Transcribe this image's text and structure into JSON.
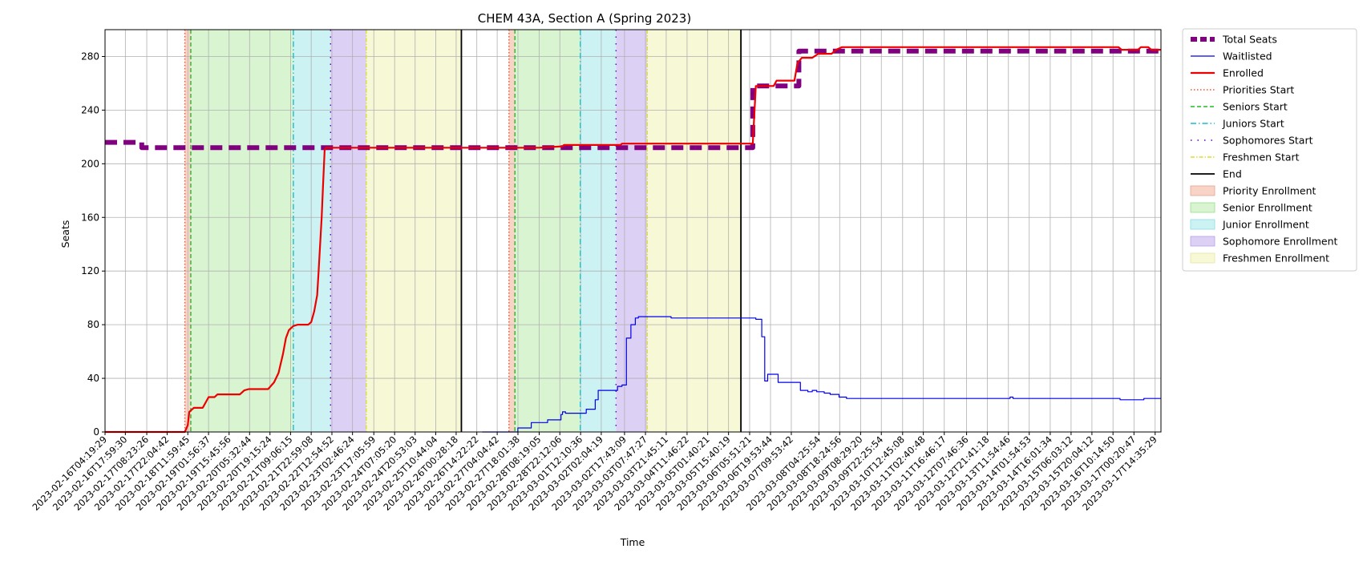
{
  "chart_data": {
    "type": "line",
    "title": "CHEM 43A, Section A (Spring 2023)",
    "xlabel": "Time",
    "ylabel": "Seats",
    "ylim": [
      0,
      300
    ],
    "yticks": [
      0,
      40,
      80,
      120,
      160,
      200,
      240,
      280
    ],
    "xlim": [
      "2023-02-16T04:19:29",
      "2023-03-17T18:30:00"
    ],
    "grid": true,
    "legend_position": "outside-right",
    "xtick_labels": [
      "2023-02-16T04:19:29",
      "2023-02-16T17:59:30",
      "2023-02-17T08:23:26",
      "2023-02-17T22:04:42",
      "2023-02-18T11:59:45",
      "2023-02-19T01:56:37",
      "2023-02-19T15:45:56",
      "2023-02-20T05:32:44",
      "2023-02-20T19:15:24",
      "2023-02-21T09:06:15",
      "2023-02-21T22:59:08",
      "2023-02-22T12:54:52",
      "2023-02-23T02:46:24",
      "2023-02-23T17:05:59",
      "2023-02-24T07:05:20",
      "2023-02-24T20:53:03",
      "2023-02-25T10:44:04",
      "2023-02-26T00:28:18",
      "2023-02-26T14:22:22",
      "2023-02-27T04:04:42",
      "2023-02-27T18:01:38",
      "2023-02-28T08:19:05",
      "2023-02-28T22:12:06",
      "2023-03-01T12:10:36",
      "2023-03-02T02:04:19",
      "2023-03-02T17:43:09",
      "2023-03-03T07:47:27",
      "2023-03-03T21:45:11",
      "2023-03-04T11:46:22",
      "2023-03-05T01:40:21",
      "2023-03-05T15:40:19",
      "2023-03-06T05:51:21",
      "2023-03-06T19:53:44",
      "2023-03-07T09:53:42",
      "2023-03-08T04:25:54",
      "2023-03-08T18:24:56",
      "2023-03-09T08:29:20",
      "2023-03-09T22:25:54",
      "2023-03-10T12:45:08",
      "2023-03-11T02:40:48",
      "2023-03-11T16:46:17",
      "2023-03-12T07:46:36",
      "2023-03-12T21:41:18",
      "2023-03-13T11:54:46",
      "2023-03-14T01:54:53",
      "2023-03-14T16:01:34",
      "2023-03-15T06:03:12",
      "2023-03-15T20:04:12",
      "2023-03-16T10:14:50",
      "2023-03-17T00:20:47",
      "2023-03-17T14:35:29"
    ],
    "markers": [
      {
        "name": "Priorities Start",
        "x": [
          "2023-02-18T10:00:00",
          "2023-02-27T12:00:00"
        ],
        "color": "#ff4c2b",
        "dash": "1.5,2.5"
      },
      {
        "name": "Seniors Start",
        "x": [
          "2023-02-18T14:00:00",
          "2023-02-27T16:00:00"
        ],
        "color": "#22bb22",
        "dash": "5,3"
      },
      {
        "name": "Juniors Start",
        "x": [
          "2023-02-21T11:00:00",
          "2023-03-01T12:00:00"
        ],
        "color": "#17becf",
        "dash": "7,3,1.5,3"
      },
      {
        "name": "Sophomores Start",
        "x": [
          "2023-02-22T12:00:00",
          "2023-03-02T12:00:00"
        ],
        "color": "#5500cc",
        "dash": "1.5,7"
      },
      {
        "name": "Freshmen Start",
        "x": [
          "2023-02-23T12:00:00",
          "2023-03-03T09:00:00"
        ],
        "color": "#dddd33",
        "dash": "5,2,1.5,2"
      },
      {
        "name": "End",
        "x": [
          "2023-02-26T04:00:00",
          "2023-03-06T00:00:00"
        ],
        "color": "#000000",
        "dash": ""
      }
    ],
    "regions": [
      {
        "name": "Priority Enrollment",
        "ranges": [
          [
            "2023-02-18T10:00:00",
            "2023-02-18T14:00:00"
          ],
          [
            "2023-02-27T12:00:00",
            "2023-02-27T16:00:00"
          ]
        ],
        "fill": "#f7d4c6",
        "stroke": "#e8a090"
      },
      {
        "name": "Senior Enrollment",
        "ranges": [
          [
            "2023-02-18T14:00:00",
            "2023-02-21T11:00:00"
          ],
          [
            "2023-02-27T16:00:00",
            "2023-03-01T12:00:00"
          ]
        ],
        "fill": "#d8f4d0",
        "stroke": "#99dd88"
      },
      {
        "name": "Junior Enrollment",
        "ranges": [
          [
            "2023-02-21T11:00:00",
            "2023-02-22T12:00:00"
          ],
          [
            "2023-03-01T12:00:00",
            "2023-03-02T12:00:00"
          ]
        ],
        "fill": "#cdf2f4",
        "stroke": "#88dde6"
      },
      {
        "name": "Sophomore Enrollment",
        "ranges": [
          [
            "2023-02-22T12:00:00",
            "2023-02-23T12:00:00"
          ],
          [
            "2023-03-02T12:00:00",
            "2023-03-03T09:00:00"
          ]
        ],
        "fill": "#ddd0f5",
        "stroke": "#b8a0e6"
      },
      {
        "name": "Freshmen Enrollment",
        "ranges": [
          [
            "2023-02-23T12:00:00",
            "2023-02-26T04:00:00"
          ],
          [
            "2023-03-03T09:00:00",
            "2023-03-06T00:00:00"
          ]
        ],
        "fill": "#f7f8d6",
        "stroke": "#e4e6a0"
      }
    ],
    "series": [
      {
        "name": "Total Seats",
        "color": "#800080",
        "width": 6,
        "dash": "15,8",
        "step": true,
        "points": [
          [
            "2023-02-16T04:19:29",
            216
          ],
          [
            "2023-02-17T04:00:00",
            216
          ],
          [
            "2023-02-17T05:00:00",
            212
          ],
          [
            "2023-02-26T04:00:00",
            212
          ],
          [
            "2023-02-26T20:00:00",
            212
          ],
          [
            "2023-03-06T06:00:00",
            212
          ],
          [
            "2023-03-06T08:00:00",
            258
          ],
          [
            "2023-03-07T14:00:00",
            258
          ],
          [
            "2023-03-07T15:00:00",
            284
          ],
          [
            "2023-03-17T18:30:00",
            284
          ]
        ]
      },
      {
        "name": "Waitlisted",
        "color": "#0000ee",
        "width": 1.2,
        "dash": "",
        "step": true,
        "points": [
          [
            "2023-02-26T18:00:00",
            0
          ],
          [
            "2023-02-27T15:00:00",
            0
          ],
          [
            "2023-02-27T18:00:00",
            3
          ],
          [
            "2023-02-28T02:00:00",
            3
          ],
          [
            "2023-02-28T03:00:00",
            7
          ],
          [
            "2023-02-28T13:00:00",
            7
          ],
          [
            "2023-02-28T14:00:00",
            9
          ],
          [
            "2023-02-28T22:00:00",
            9
          ],
          [
            "2023-02-28T23:00:00",
            13
          ],
          [
            "2023-03-01T00:00:00",
            15
          ],
          [
            "2023-03-01T02:00:00",
            14
          ],
          [
            "2023-03-01T12:00:00",
            14
          ],
          [
            "2023-03-01T16:00:00",
            17
          ],
          [
            "2023-03-01T22:00:00",
            24
          ],
          [
            "2023-03-02T00:00:00",
            31
          ],
          [
            "2023-03-02T12:00:00",
            31
          ],
          [
            "2023-03-02T13:00:00",
            34
          ],
          [
            "2023-03-02T16:00:00",
            35
          ],
          [
            "2023-03-02T19:00:00",
            70
          ],
          [
            "2023-03-02T22:00:00",
            80
          ],
          [
            "2023-03-03T01:00:00",
            85
          ],
          [
            "2023-03-03T03:00:00",
            86
          ],
          [
            "2023-03-04T00:00:00",
            86
          ],
          [
            "2023-03-04T01:00:00",
            85
          ],
          [
            "2023-03-06T10:00:00",
            84
          ],
          [
            "2023-03-06T12:00:00",
            84
          ],
          [
            "2023-03-06T14:00:00",
            71
          ],
          [
            "2023-03-06T16:00:00",
            38
          ],
          [
            "2023-03-06T18:00:00",
            43
          ],
          [
            "2023-03-07T00:00:00",
            43
          ],
          [
            "2023-03-07T01:00:00",
            37
          ],
          [
            "2023-03-07T13:00:00",
            37
          ],
          [
            "2023-03-07T16:00:00",
            31
          ],
          [
            "2023-03-07T21:00:00",
            30
          ],
          [
            "2023-03-08T00:00:00",
            31
          ],
          [
            "2023-03-08T03:00:00",
            30
          ],
          [
            "2023-03-08T08:00:00",
            29
          ],
          [
            "2023-03-08T12:00:00",
            28
          ],
          [
            "2023-03-08T18:00:00",
            26
          ],
          [
            "2023-03-08T23:00:00",
            25
          ],
          [
            "2023-03-13T12:00:00",
            25
          ],
          [
            "2023-03-13T13:00:00",
            26
          ],
          [
            "2023-03-13T15:00:00",
            25
          ],
          [
            "2023-03-16T14:00:00",
            25
          ],
          [
            "2023-03-16T15:00:00",
            24
          ],
          [
            "2023-03-17T06:00:00",
            24
          ],
          [
            "2023-03-17T07:00:00",
            25
          ],
          [
            "2023-03-17T18:30:00",
            25
          ]
        ]
      },
      {
        "name": "Enrolled",
        "color": "#ee0000",
        "width": 2.2,
        "dash": "",
        "step": false,
        "points": [
          [
            "2023-02-16T04:19:29",
            0
          ],
          [
            "2023-02-18T10:00:00",
            0
          ],
          [
            "2023-02-18T12:00:00",
            5
          ],
          [
            "2023-02-18T13:00:00",
            15
          ],
          [
            "2023-02-18T16:00:00",
            18
          ],
          [
            "2023-02-18T22:00:00",
            18
          ],
          [
            "2023-02-19T02:00:00",
            26
          ],
          [
            "2023-02-19T06:00:00",
            26
          ],
          [
            "2023-02-19T08:00:00",
            28
          ],
          [
            "2023-02-19T23:00:00",
            28
          ],
          [
            "2023-02-20T02:00:00",
            31
          ],
          [
            "2023-02-20T05:00:00",
            32
          ],
          [
            "2023-02-20T18:00:00",
            32
          ],
          [
            "2023-02-20T22:00:00",
            37
          ],
          [
            "2023-02-21T01:00:00",
            44
          ],
          [
            "2023-02-21T04:00:00",
            58
          ],
          [
            "2023-02-21T06:00:00",
            70
          ],
          [
            "2023-02-21T08:00:00",
            76
          ],
          [
            "2023-02-21T11:00:00",
            79
          ],
          [
            "2023-02-21T14:00:00",
            80
          ],
          [
            "2023-02-21T21:00:00",
            80
          ],
          [
            "2023-02-21T23:00:00",
            82
          ],
          [
            "2023-02-22T01:00:00",
            90
          ],
          [
            "2023-02-22T03:00:00",
            102
          ],
          [
            "2023-02-22T04:00:00",
            120
          ],
          [
            "2023-02-22T06:00:00",
            160
          ],
          [
            "2023-02-22T07:00:00",
            185
          ],
          [
            "2023-02-22T08:00:00",
            210
          ],
          [
            "2023-02-22T09:00:00",
            212
          ],
          [
            "2023-02-26T04:00:00",
            212
          ],
          [
            "2023-02-26T20:00:00",
            212
          ],
          [
            "2023-02-28T08:00:00",
            212
          ],
          [
            "2023-03-01T00:00:00",
            213
          ],
          [
            "2023-03-01T01:00:00",
            214
          ],
          [
            "2023-03-02T15:00:00",
            214
          ],
          [
            "2023-03-02T16:00:00",
            215
          ],
          [
            "2023-03-06T04:00:00",
            215
          ],
          [
            "2023-03-06T08:00:00",
            215
          ],
          [
            "2023-03-06T10:00:00",
            258
          ],
          [
            "2023-03-06T22:00:00",
            258
          ],
          [
            "2023-03-07T00:00:00",
            262
          ],
          [
            "2023-03-07T12:00:00",
            262
          ],
          [
            "2023-03-07T14:00:00",
            275
          ],
          [
            "2023-03-07T17:00:00",
            279
          ],
          [
            "2023-03-08T00:00:00",
            279
          ],
          [
            "2023-03-08T04:00:00",
            282
          ],
          [
            "2023-03-08T13:00:00",
            282
          ],
          [
            "2023-03-08T16:00:00",
            285
          ],
          [
            "2023-03-08T20:00:00",
            287
          ],
          [
            "2023-03-16T14:00:00",
            287
          ],
          [
            "2023-03-16T16:00:00",
            285
          ],
          [
            "2023-03-17T03:00:00",
            285
          ],
          [
            "2023-03-17T05:00:00",
            287
          ],
          [
            "2023-03-17T10:00:00",
            287
          ],
          [
            "2023-03-17T12:00:00",
            285
          ],
          [
            "2023-03-17T18:30:00",
            285
          ]
        ]
      }
    ]
  }
}
